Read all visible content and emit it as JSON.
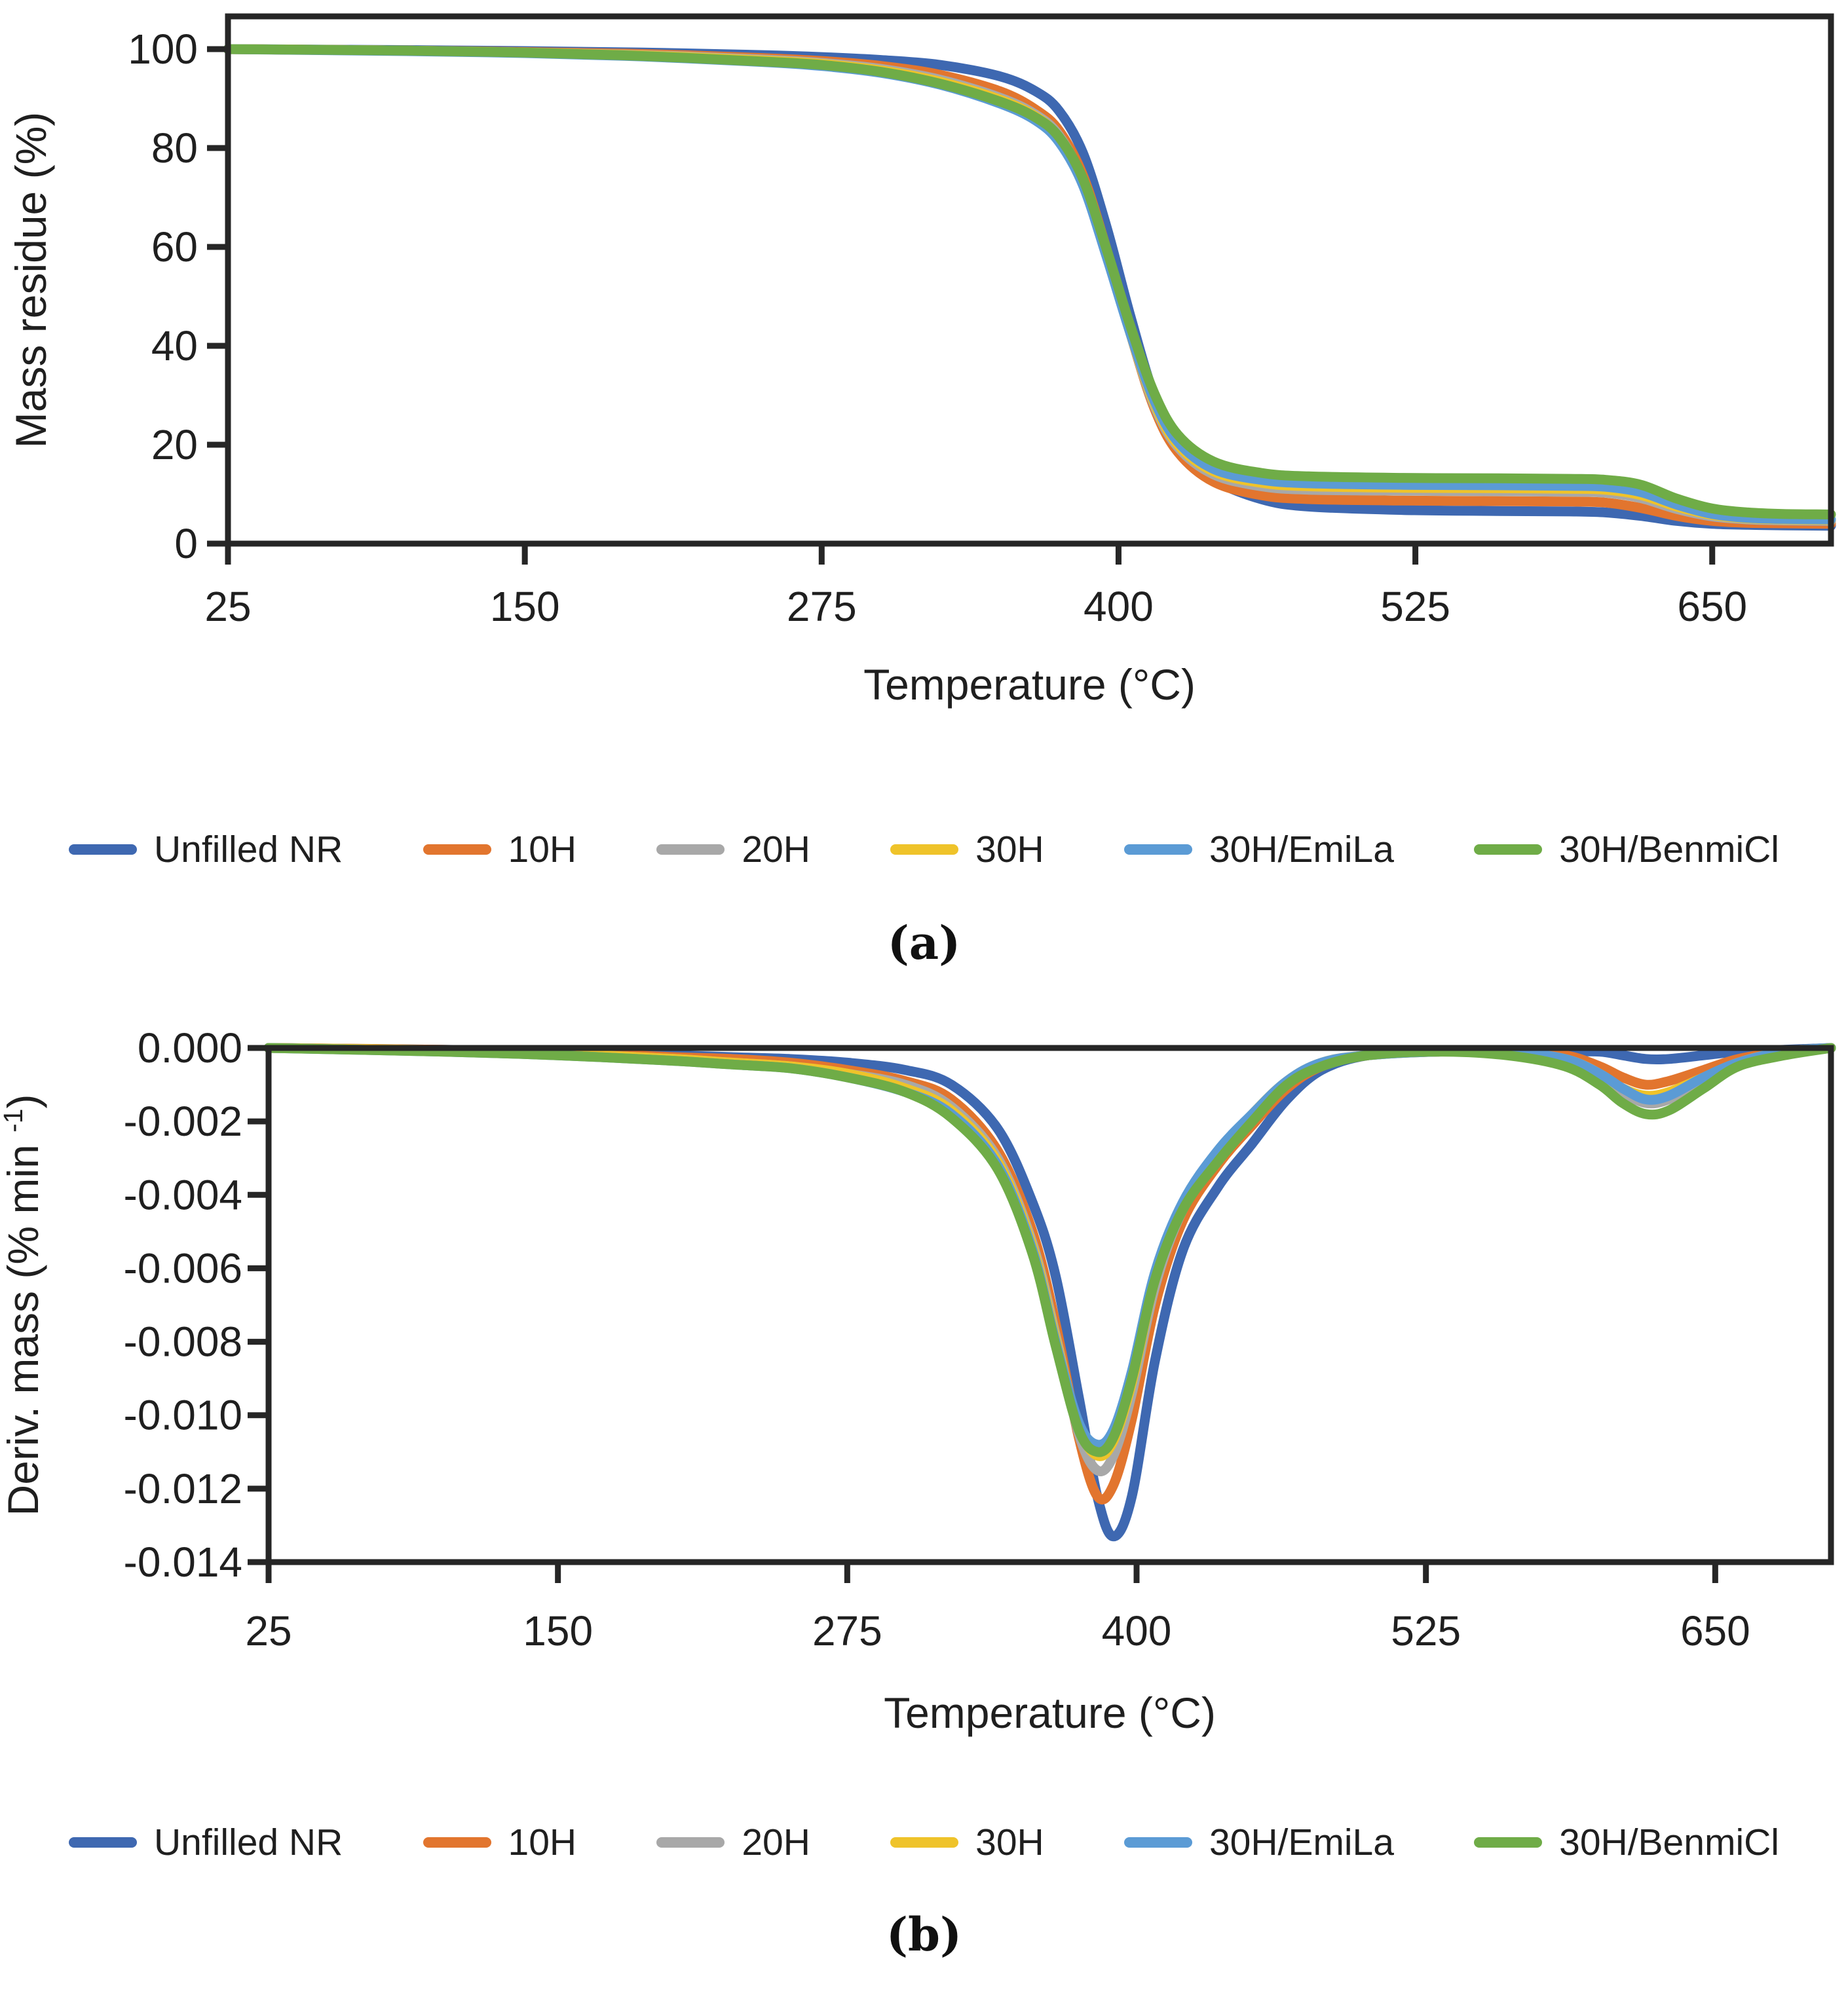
{
  "figure": {
    "panels": [
      {
        "id": "a",
        "label": "(a)"
      },
      {
        "id": "b",
        "label": "(b)"
      }
    ],
    "legend": [
      {
        "label": "Unfilled NR",
        "color": "#3E68B1"
      },
      {
        "label": "10H",
        "color": "#E2752E"
      },
      {
        "label": "20H",
        "color": "#A8A8A8"
      },
      {
        "label": "30H",
        "color": "#EFC32A"
      },
      {
        "label": "30H/EmiLa",
        "color": "#5B9BD5"
      },
      {
        "label": "30H/BenmiCl",
        "color": "#6FAC47"
      }
    ],
    "colors": {
      "axis": "#262626",
      "text": "#1f1f1f"
    }
  },
  "chart_data": [
    {
      "type": "line",
      "panel": "a",
      "title": "",
      "xlabel": "Temperature (°C)",
      "ylabel": "Mass residue (%)",
      "xlim": [
        25,
        700
      ],
      "ylim": [
        0,
        106
      ],
      "grid": false,
      "legend_position": "bottom",
      "x_ticks": {
        "values": [
          25,
          150,
          275,
          400,
          525,
          650
        ],
        "labels": [
          "25",
          "150",
          "275",
          "400",
          "525",
          "650"
        ]
      },
      "y_ticks": {
        "values": [
          100,
          80,
          60,
          40,
          20,
          0
        ],
        "labels": [
          "100",
          "80",
          "60",
          "40",
          "20",
          "0"
        ]
      },
      "x": [
        25,
        100,
        150,
        200,
        250,
        275,
        300,
        325,
        350,
        365,
        375,
        385,
        395,
        405,
        415,
        425,
        440,
        460,
        480,
        520,
        560,
        590,
        605,
        620,
        635,
        650,
        665,
        680,
        700
      ],
      "series": [
        {
          "name": "Unfilled NR",
          "color": "#3E68B1",
          "values": [
            100,
            99.8,
            99.6,
            99.3,
            98.8,
            98.4,
            97.8,
            96.8,
            94.5,
            91.5,
            87.5,
            79,
            64,
            46,
            30,
            20,
            13,
            9,
            7.5,
            6.8,
            6.6,
            6.5,
            6.3,
            5.6,
            4.6,
            4.0,
            3.8,
            3.7,
            3.6
          ]
        },
        {
          "name": "10H",
          "color": "#E2752E",
          "values": [
            100,
            99.7,
            99.4,
            99.0,
            98.2,
            97.6,
            96.6,
            94.8,
            91.5,
            87.8,
            83.5,
            74.5,
            59.5,
            42.5,
            27.5,
            18.5,
            12.5,
            9.8,
            9.0,
            8.7,
            8.6,
            8.5,
            8.3,
            7.2,
            5.6,
            4.6,
            4.2,
            4.1,
            4.0
          ]
        },
        {
          "name": "20H",
          "color": "#A8A8A8",
          "values": [
            100,
            99.7,
            99.3,
            98.8,
            97.9,
            97.2,
            96.0,
            93.8,
            90.2,
            86.8,
            82.5,
            73.5,
            59.0,
            42.5,
            28.0,
            19.5,
            14.0,
            11.6,
            10.9,
            10.7,
            10.6,
            10.5,
            10.3,
            9.2,
            7.0,
            5.5,
            4.9,
            4.7,
            4.6
          ]
        },
        {
          "name": "30H",
          "color": "#EFC32A",
          "values": [
            100,
            99.7,
            99.3,
            98.7,
            97.7,
            97.0,
            95.7,
            93.4,
            89.8,
            86.4,
            82.0,
            73.0,
            58.5,
            42.5,
            28.5,
            20.0,
            14.6,
            12.3,
            11.6,
            11.3,
            11.2,
            11.1,
            10.9,
            9.8,
            7.5,
            5.8,
            5.1,
            4.9,
            4.8
          ]
        },
        {
          "name": "30H/EmiLa",
          "color": "#5B9BD5",
          "values": [
            100,
            99.6,
            99.2,
            98.5,
            97.4,
            96.6,
            95.2,
            92.8,
            89.0,
            85.6,
            81.2,
            72.5,
            58.0,
            42.5,
            29.0,
            20.6,
            15.1,
            12.9,
            12.2,
            11.9,
            11.8,
            11.7,
            11.5,
            10.4,
            7.9,
            6.0,
            5.2,
            5.0,
            4.9
          ]
        },
        {
          "name": "30H/BenmiCl",
          "color": "#6FAC47",
          "values": [
            100,
            99.7,
            99.3,
            98.6,
            97.5,
            96.8,
            95.4,
            93.0,
            89.4,
            86.2,
            82.2,
            73.8,
            59.5,
            44.0,
            30.5,
            22.0,
            16.6,
            14.3,
            13.6,
            13.3,
            13.2,
            13.1,
            12.9,
            11.9,
            9.1,
            7.1,
            6.3,
            6.0,
            5.9
          ]
        }
      ]
    },
    {
      "type": "line",
      "panel": "b",
      "title": "",
      "xlabel": "Temperature (°C)",
      "ylabel": "Deriv. mass (% min⁻¹)",
      "ylabel_parts": {
        "main": "Deriv. mass (% min ",
        "sup": "-1",
        "close": ")"
      },
      "xlim": [
        25,
        700
      ],
      "ylim": [
        -0.014,
        0
      ],
      "grid": false,
      "legend_position": "bottom",
      "x_ticks": {
        "values": [
          25,
          150,
          275,
          400,
          525,
          650
        ],
        "labels": [
          "25",
          "150",
          "275",
          "400",
          "525",
          "650"
        ]
      },
      "y_ticks": {
        "values": [
          0,
          -0.002,
          -0.004,
          -0.006,
          -0.008,
          -0.01,
          -0.012,
          -0.014
        ],
        "labels": [
          "0.000",
          "-0.002",
          "-0.004",
          "-0.006",
          "-0.008",
          "-0.010",
          "-0.012",
          "-0.014"
        ]
      },
      "x": [
        25,
        100,
        150,
        200,
        225,
        250,
        275,
        300,
        320,
        340,
        355,
        365,
        375,
        383,
        390,
        398,
        408,
        420,
        435,
        450,
        465,
        480,
        500,
        530,
        560,
        585,
        600,
        610,
        620,
        630,
        645,
        660,
        680,
        700
      ],
      "series": [
        {
          "name": "Unfilled NR",
          "color": "#3E68B1",
          "values": [
            0,
            -5e-05,
            -0.0001,
            -0.0002,
            -0.00025,
            -0.0003,
            -0.0004,
            -0.0006,
            -0.001,
            -0.0022,
            -0.0042,
            -0.0062,
            -0.0095,
            -0.0122,
            -0.0133,
            -0.0122,
            -0.0085,
            -0.0055,
            -0.0038,
            -0.0026,
            -0.0014,
            -0.0006,
            -0.0002,
            -0.0001,
            -0.0001,
            -0.0001,
            -0.0001,
            -0.0002,
            -0.0003,
            -0.0003,
            -0.0002,
            -0.0001,
            -5e-05,
            0
          ]
        },
        {
          "name": "10H",
          "color": "#E2752E",
          "values": [
            0,
            -5e-05,
            -0.00012,
            -0.00025,
            -0.0003,
            -0.0004,
            -0.0006,
            -0.0009,
            -0.0014,
            -0.0028,
            -0.005,
            -0.0075,
            -0.0106,
            -0.0122,
            -0.0119,
            -0.0101,
            -0.007,
            -0.0047,
            -0.0032,
            -0.0021,
            -0.0011,
            -0.0005,
            -0.0002,
            -0.0001,
            -0.0001,
            -0.0002,
            -0.0005,
            -0.0008,
            -0.001,
            -0.0009,
            -0.0006,
            -0.0003,
            -0.0001,
            0
          ]
        },
        {
          "name": "20H",
          "color": "#A8A8A8",
          "values": [
            0,
            -6e-05,
            -0.00015,
            -0.0003,
            -0.0004,
            -0.0005,
            -0.0007,
            -0.001,
            -0.0016,
            -0.003,
            -0.0053,
            -0.0078,
            -0.0105,
            -0.0115,
            -0.0111,
            -0.0094,
            -0.0065,
            -0.0044,
            -0.003,
            -0.0019,
            -0.001,
            -0.0004,
            -0.0002,
            -0.0001,
            -0.0001,
            -0.0003,
            -0.0007,
            -0.0012,
            -0.0015,
            -0.0014,
            -0.0009,
            -0.0004,
            -0.0001,
            0
          ]
        },
        {
          "name": "30H",
          "color": "#EFC32A",
          "values": [
            0,
            -6e-05,
            -0.00015,
            -0.0003,
            -0.0004,
            -0.0005,
            -0.0007,
            -0.0011,
            -0.0017,
            -0.0031,
            -0.0054,
            -0.0079,
            -0.0103,
            -0.0111,
            -0.0107,
            -0.0091,
            -0.0063,
            -0.0043,
            -0.0029,
            -0.0018,
            -0.0009,
            -0.0004,
            -0.0002,
            -0.0001,
            -0.0001,
            -0.0003,
            -0.0007,
            -0.0011,
            -0.0013,
            -0.0012,
            -0.0008,
            -0.0004,
            -0.0001,
            0
          ]
        },
        {
          "name": "30H/EmiLa",
          "color": "#5B9BD5",
          "values": [
            0,
            -0.0001,
            -0.0002,
            -0.00035,
            -0.00045,
            -0.00055,
            -0.0008,
            -0.0012,
            -0.0018,
            -0.0032,
            -0.0055,
            -0.008,
            -0.0102,
            -0.0108,
            -0.0104,
            -0.0088,
            -0.0061,
            -0.0042,
            -0.0028,
            -0.0018,
            -0.0009,
            -0.0004,
            -0.0002,
            -0.0001,
            -0.0001,
            -0.0003,
            -0.0007,
            -0.0011,
            -0.0014,
            -0.0013,
            -0.0008,
            -0.0004,
            -0.0001,
            0
          ]
        },
        {
          "name": "30H/BenmiCl",
          "color": "#6FAC47",
          "values": [
            0,
            -0.0001,
            -0.0002,
            -0.00035,
            -0.00045,
            -0.00055,
            -0.0008,
            -0.0012,
            -0.0019,
            -0.0033,
            -0.0056,
            -0.0081,
            -0.0104,
            -0.011,
            -0.0106,
            -0.009,
            -0.0063,
            -0.0044,
            -0.0031,
            -0.002,
            -0.001,
            -0.0005,
            -0.0002,
            -0.0001,
            -0.0002,
            -0.0005,
            -0.001,
            -0.0015,
            -0.0018,
            -0.0017,
            -0.0011,
            -0.0005,
            -0.0002,
            0
          ]
        }
      ]
    }
  ]
}
